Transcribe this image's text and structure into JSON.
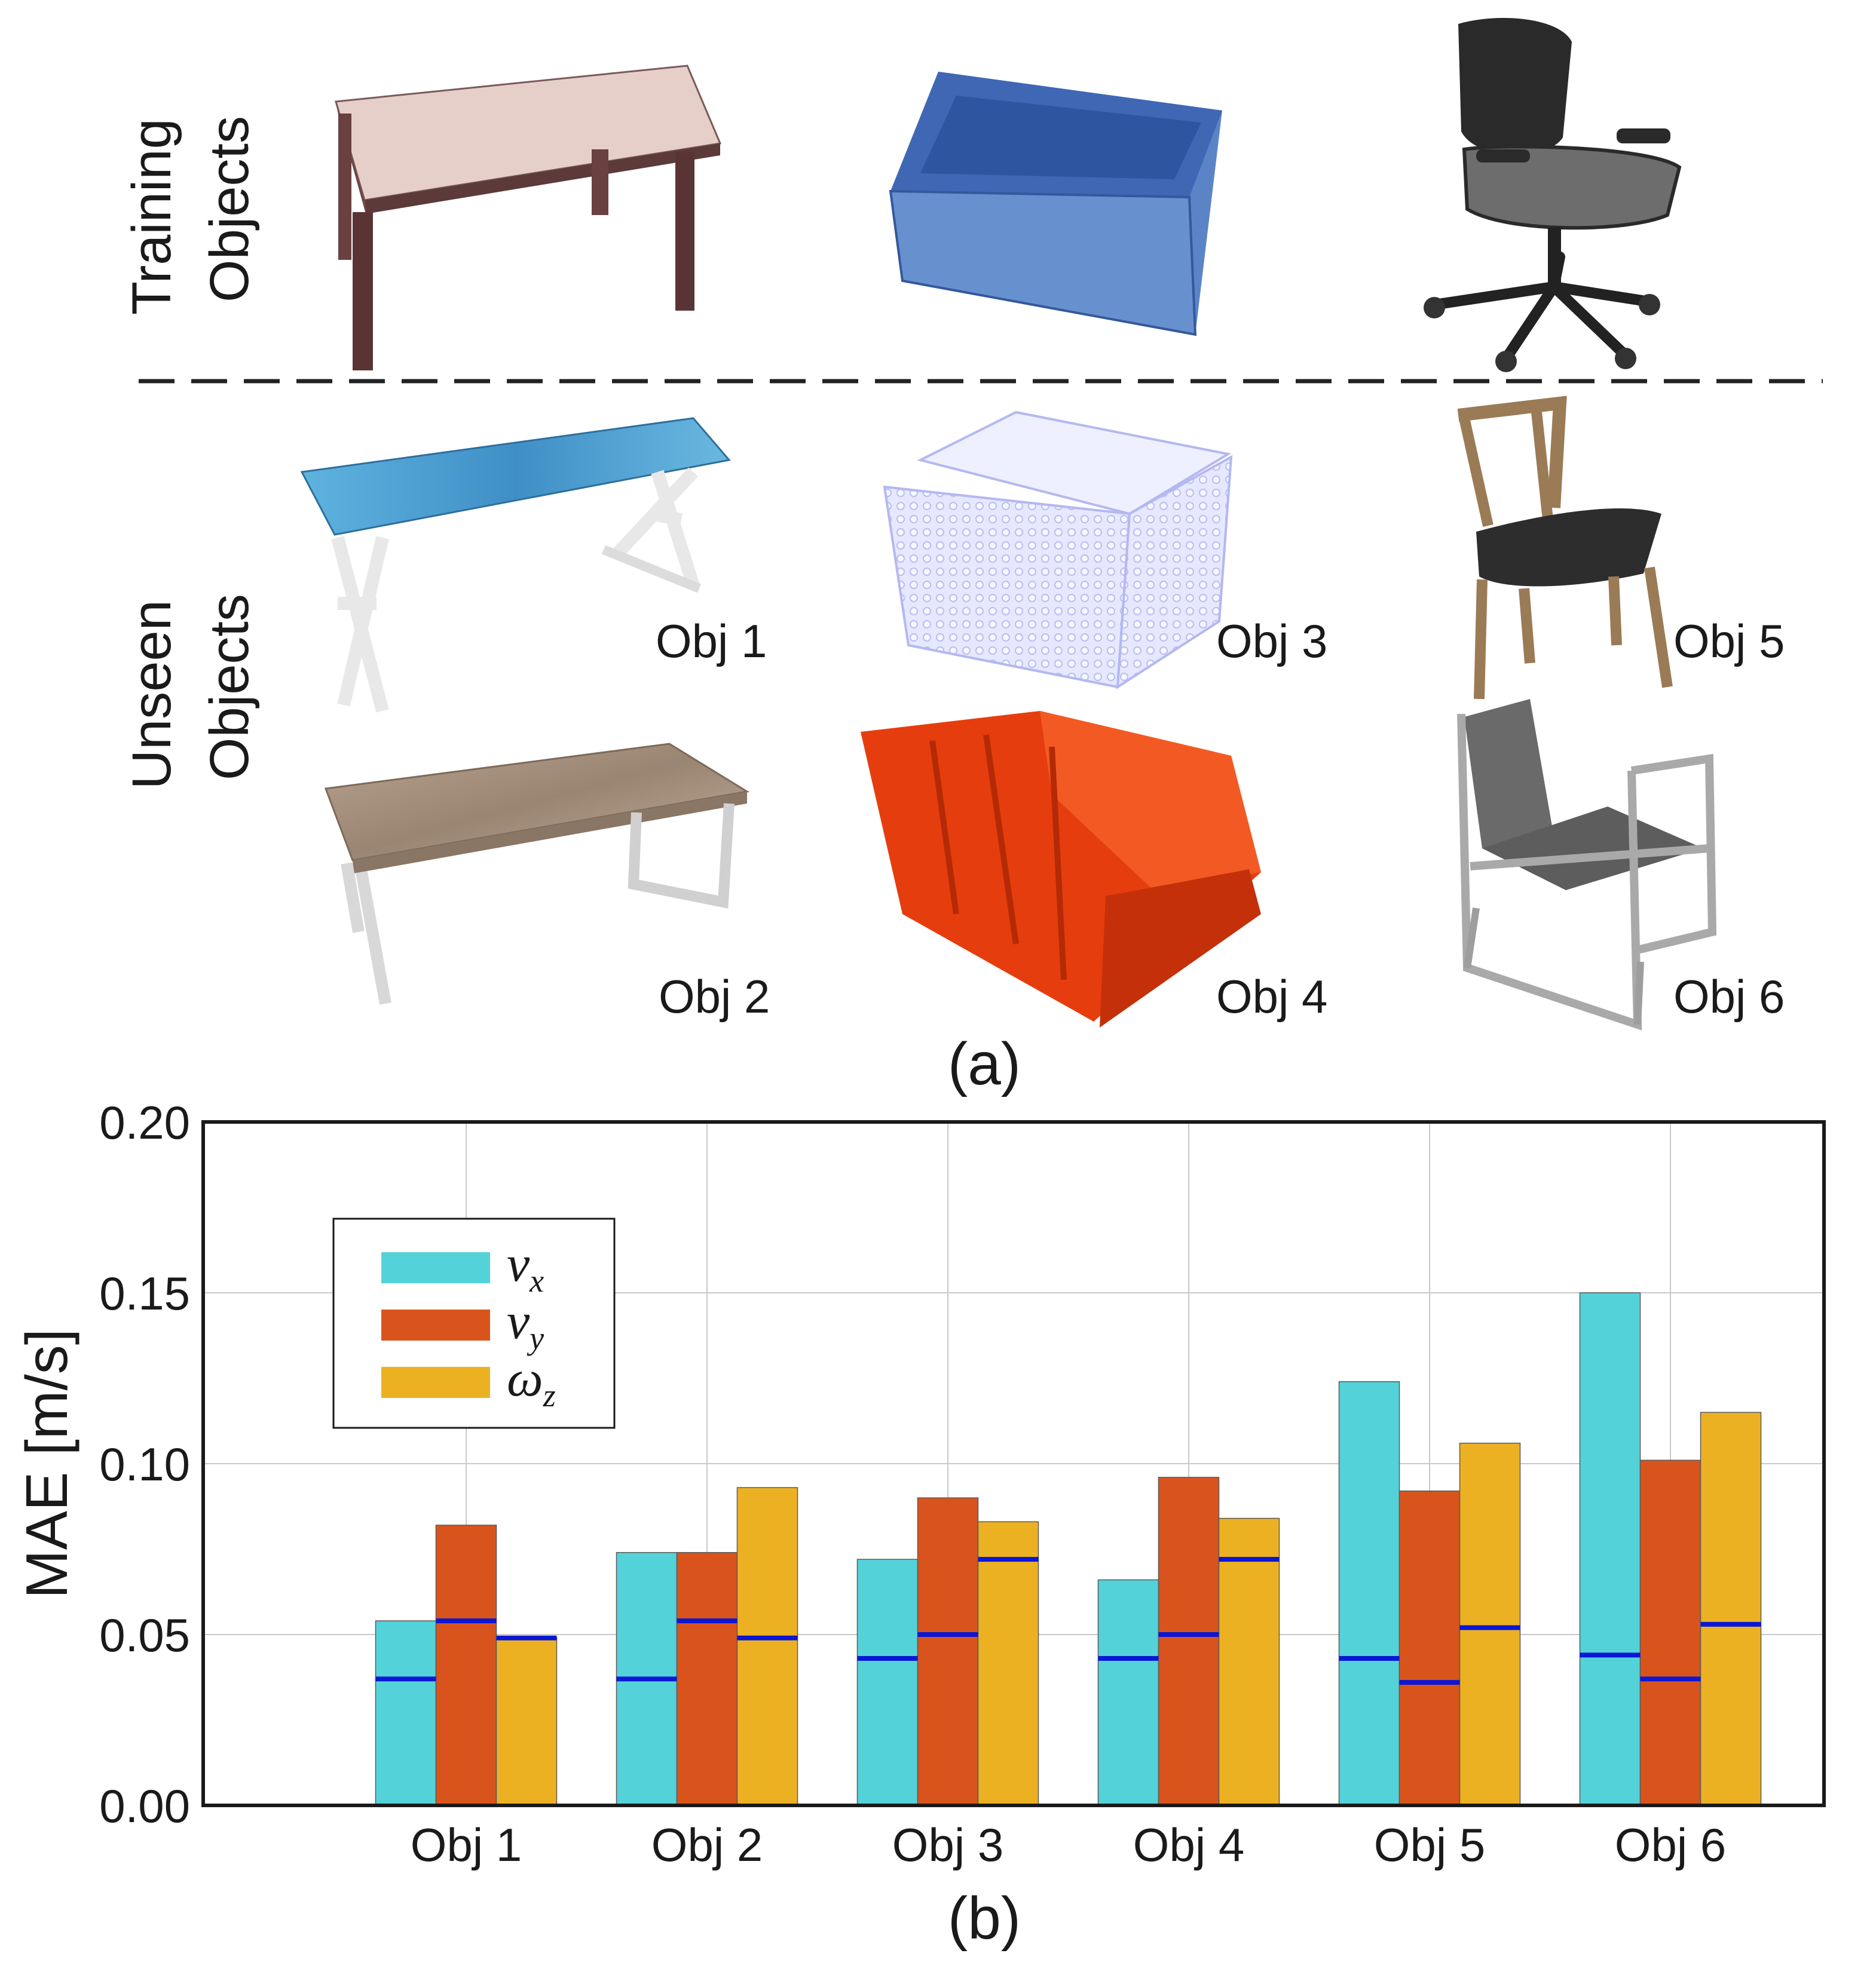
{
  "panel_a": {
    "row_labels": {
      "training": [
        "Training",
        "Objects"
      ],
      "unseen": [
        "Unseen",
        "Objects"
      ]
    },
    "objects": {
      "obj1": "Obj 1",
      "obj2": "Obj 2",
      "obj3": "Obj 3",
      "obj4": "Obj 4",
      "obj5": "Obj 5",
      "obj6": "Obj 6"
    },
    "caption": "(a)"
  },
  "panel_b": {
    "caption": "(b)"
  },
  "chart_data": {
    "type": "bar",
    "categories": [
      "Obj 1",
      "Obj 2",
      "Obj 3",
      "Obj 4",
      "Obj 5",
      "Obj 6"
    ],
    "ylabel": "MAE [m/s]",
    "xlabel": "",
    "ylim": [
      0,
      0.2
    ],
    "yticks": [
      "0.00",
      "0.05",
      "0.10",
      "0.15",
      "0.20"
    ],
    "grid": true,
    "legend_position": "top-left",
    "series": [
      {
        "name": "v_x",
        "legend_main": "v",
        "legend_sub": "x",
        "color": "#54d2d9",
        "values": [
          0.054,
          0.074,
          0.072,
          0.066,
          0.124,
          0.15
        ],
        "markers": [
          0.037,
          0.037,
          0.043,
          0.043,
          0.043,
          0.044
        ]
      },
      {
        "name": "v_y",
        "legend_main": "v",
        "legend_sub": "y",
        "color": "#d9541c",
        "values": [
          0.082,
          0.074,
          0.09,
          0.096,
          0.092,
          0.101
        ],
        "markers": [
          0.054,
          0.054,
          0.05,
          0.05,
          0.036,
          0.037
        ]
      },
      {
        "name": "ω_z",
        "legend_main": "ω",
        "legend_sub": "z",
        "color": "#ecb123",
        "values": [
          0.049,
          0.093,
          0.083,
          0.084,
          0.106,
          0.115
        ],
        "markers": [
          0.049,
          0.049,
          0.072,
          0.072,
          0.052,
          0.053
        ]
      }
    ],
    "marker_color": "#0a17d6"
  }
}
